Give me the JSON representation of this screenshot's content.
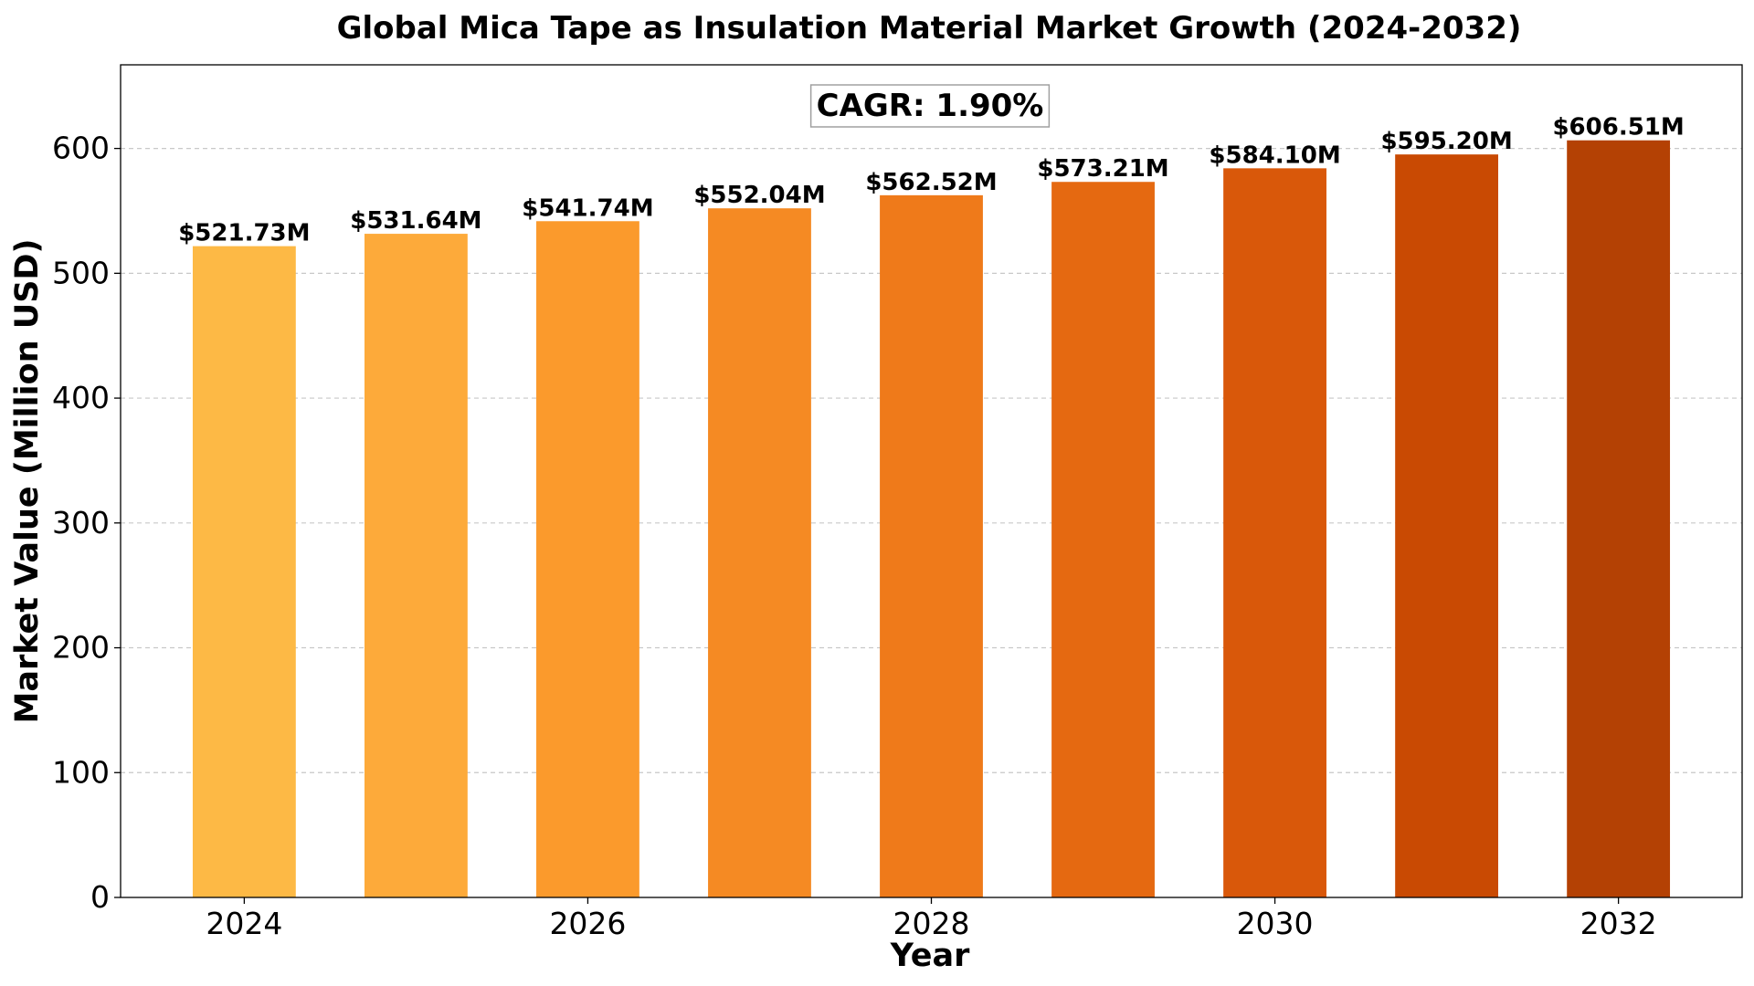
{
  "chart_data": {
    "type": "bar",
    "title": "Global Mica Tape as Insulation Material Market Growth (2024-2032)",
    "xlabel": "Year",
    "ylabel": "Market Value (Million USD)",
    "categories": [
      "2024",
      "2025",
      "2026",
      "2027",
      "2028",
      "2029",
      "2030",
      "2031",
      "2032"
    ],
    "values": [
      521.73,
      531.64,
      541.74,
      552.04,
      562.52,
      573.21,
      584.1,
      595.2,
      606.51
    ],
    "data_labels": [
      "$521.73M",
      "$531.64M",
      "$541.74M",
      "$552.04M",
      "$562.52M",
      "$573.21M",
      "$584.10M",
      "$595.20M",
      "$606.51M"
    ],
    "x_ticks": [
      "2024",
      "2026",
      "2028",
      "2030",
      "2032"
    ],
    "y_ticks": [
      0,
      100,
      200,
      300,
      400,
      500,
      600
    ],
    "ylim": [
      0,
      667
    ],
    "grid": "y-dashed",
    "annotation": "CAGR: 1.90%",
    "bar_colors": [
      "#FDB945",
      "#FDAA3A",
      "#FB9A2C",
      "#F58A23",
      "#EF7A1A",
      "#E56911",
      "#D9580A",
      "#C94A03",
      "#B44104"
    ]
  }
}
